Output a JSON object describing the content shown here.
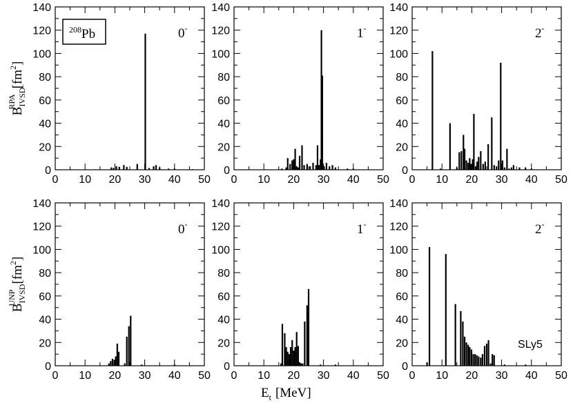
{
  "figure": {
    "y_label_top": {
      "main": "B",
      "sub": "IVSD",
      "sup": "RPA",
      "unit_open": "[fm",
      "unit_sup": "2",
      "unit_close": "]"
    },
    "y_label_bottom": {
      "main": "B",
      "sub": "IVSD",
      "sup": "UNP",
      "unit_open": "[fm",
      "unit_sup": "2",
      "unit_close": "]"
    },
    "x_label": {
      "main": "E",
      "sub": "t",
      "unit": "[MeV]"
    },
    "nucleus_box": {
      "mass": "208",
      "element": "Pb"
    },
    "force_label": "SLy5",
    "x_ticks": [
      "0",
      "10",
      "20",
      "30",
      "40",
      "50"
    ],
    "y_ticks": [
      "0",
      "20",
      "40",
      "60",
      "80",
      "100",
      "120",
      "140"
    ]
  },
  "chart_data": [
    {
      "type": "bar",
      "panel": "RPA 0-",
      "row": 0,
      "col": 0,
      "label": {
        "text": "0",
        "sup": "-"
      },
      "xlim": [
        0,
        50
      ],
      "ylim": [
        0,
        140
      ],
      "x": [
        18.8,
        19.5,
        20.5,
        21.5,
        23.0,
        24.0,
        27.5,
        30.2,
        31.5,
        33.0,
        33.8,
        35.0,
        38.0,
        40.0,
        46.0
      ],
      "values": [
        2,
        1.5,
        3,
        2.5,
        4,
        2.5,
        5,
        117,
        1.5,
        3,
        4,
        2,
        1,
        1,
        0.5
      ]
    },
    {
      "type": "bar",
      "panel": "RPA 1-",
      "row": 0,
      "col": 1,
      "label": {
        "text": "1",
        "sup": "-"
      },
      "xlim": [
        0,
        50
      ],
      "ylim": [
        0,
        140
      ],
      "x": [
        16.0,
        17.5,
        18.0,
        18.8,
        19.5,
        20.0,
        20.5,
        21.0,
        21.5,
        22.0,
        22.8,
        23.5,
        24.5,
        25.5,
        26.5,
        27.5,
        28.0,
        28.5,
        29.0,
        29.3,
        29.6,
        30.2,
        31.0,
        32.0,
        33.0,
        34.0,
        38.0,
        40.0
      ],
      "values": [
        1,
        2,
        10,
        5,
        8,
        9,
        18,
        3,
        2,
        12,
        21,
        4,
        5,
        3,
        6,
        4,
        21,
        4,
        9,
        120,
        81,
        3,
        6,
        3,
        4,
        2,
        1,
        1
      ]
    },
    {
      "type": "bar",
      "panel": "RPA 2-",
      "row": 0,
      "col": 2,
      "label": {
        "text": "2",
        "sup": "-"
      },
      "xlim": [
        0,
        50
      ],
      "ylim": [
        0,
        140
      ],
      "x": [
        6.8,
        9.5,
        12.7,
        15.0,
        15.8,
        16.5,
        17.2,
        17.6,
        18.2,
        18.8,
        19.3,
        19.8,
        20.3,
        20.7,
        21.3,
        21.8,
        22.3,
        23.0,
        23.8,
        24.5,
        25.5,
        26.7,
        27.5,
        28.3,
        29.0,
        29.7,
        30.3,
        31.0,
        31.8,
        32.5,
        33.3,
        34.0,
        36.0,
        38.0,
        40.0
      ],
      "values": [
        102,
        1,
        40,
        2,
        15,
        16,
        30,
        18,
        8,
        6,
        10,
        5,
        9,
        48,
        3,
        7,
        11,
        16,
        5,
        7,
        22,
        45,
        4,
        3,
        8,
        92,
        8,
        2,
        18,
        1,
        2,
        4,
        2,
        2,
        1
      ]
    },
    {
      "type": "bar",
      "panel": "UNP 0-",
      "row": 1,
      "col": 0,
      "label": {
        "text": "0",
        "sup": "-"
      },
      "xlim": [
        0,
        50
      ],
      "ylim": [
        0,
        140
      ],
      "x": [
        18.0,
        18.6,
        19.2,
        19.8,
        20.3,
        20.8,
        21.3,
        23.3,
        24.0,
        24.7,
        25.3,
        29.0,
        40.0
      ],
      "values": [
        2,
        4,
        6,
        5,
        8,
        19,
        12,
        2,
        25,
        34,
        43,
        1,
        1
      ]
    },
    {
      "type": "bar",
      "panel": "UNP 1-",
      "row": 1,
      "col": 1,
      "label": {
        "text": "1",
        "sup": "-"
      },
      "xlim": [
        0,
        50
      ],
      "ylim": [
        0,
        140
      ],
      "x": [
        15.8,
        16.2,
        17.0,
        17.5,
        18.0,
        18.5,
        19.0,
        19.5,
        20.0,
        20.5,
        21.0,
        21.5,
        22.0,
        22.5,
        23.0,
        23.7,
        24.5,
        25.0,
        29.0,
        34.0
      ],
      "values": [
        2,
        36,
        28,
        16,
        12,
        10,
        16,
        22,
        13,
        16,
        29,
        17,
        3,
        2,
        2,
        38,
        52,
        66,
        1,
        1
      ]
    },
    {
      "type": "bar",
      "panel": "UNP 2-",
      "row": 1,
      "col": 2,
      "label": {
        "text": "2",
        "sup": "-"
      },
      "xlim": [
        0,
        50
      ],
      "ylim": [
        0,
        140
      ],
      "x": [
        5.0,
        5.8,
        11.3,
        14.5,
        16.3,
        17.0,
        17.6,
        18.2,
        18.8,
        19.3,
        19.9,
        20.5,
        21.1,
        21.7,
        22.3,
        23.0,
        23.6,
        24.3,
        25.0,
        25.6,
        26.3,
        26.9,
        27.5,
        31.0,
        38.0
      ],
      "values": [
        3,
        102,
        96,
        53,
        47,
        38,
        25,
        20,
        18,
        16,
        14,
        10,
        10,
        9,
        8,
        7,
        10,
        17,
        19,
        22,
        2,
        10,
        9,
        1,
        1
      ]
    }
  ]
}
